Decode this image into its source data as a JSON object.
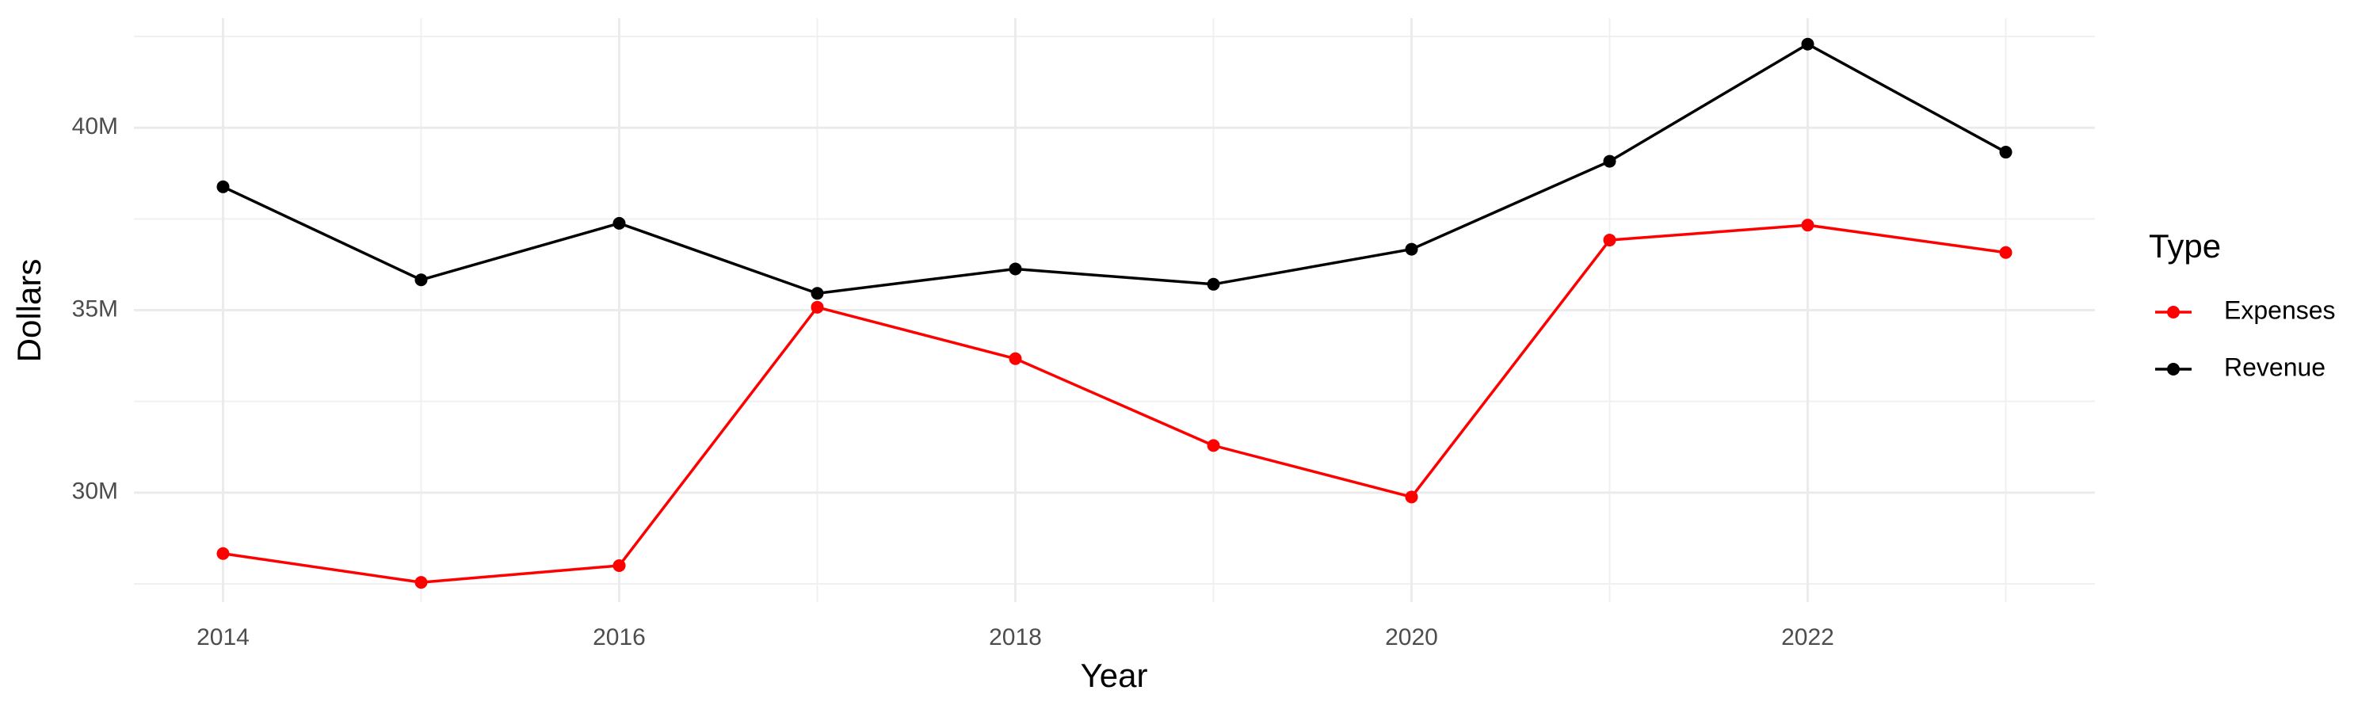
{
  "chart_data": {
    "type": "line",
    "x_label": "Year",
    "y_label": "Dollars",
    "legend_title": "Type",
    "legend_position": "right",
    "grid": true,
    "x": [
      2014,
      2015,
      2016,
      2017,
      2018,
      2019,
      2020,
      2021,
      2022,
      2023
    ],
    "series": [
      {
        "name": "Expenses",
        "color": "#ff0000",
        "values": [
          28330000,
          27540000,
          28000000,
          35080000,
          33670000,
          31290000,
          29880000,
          36920000,
          37330000,
          36580000
        ]
      },
      {
        "name": "Revenue",
        "color": "#000000",
        "values": [
          38380000,
          35830000,
          37380000,
          35460000,
          36130000,
          35710000,
          36670000,
          39080000,
          42290000,
          39330000
        ]
      }
    ],
    "xlim": [
      2013.55,
      2023.45
    ],
    "xticks": [
      2014,
      2016,
      2018,
      2020,
      2022
    ],
    "ylim": [
      27000000,
      43000000
    ],
    "yticks": [
      {
        "value": 30000000,
        "label": "30M"
      },
      {
        "value": 35000000,
        "label": "35M"
      },
      {
        "value": 40000000,
        "label": "40M"
      }
    ]
  }
}
